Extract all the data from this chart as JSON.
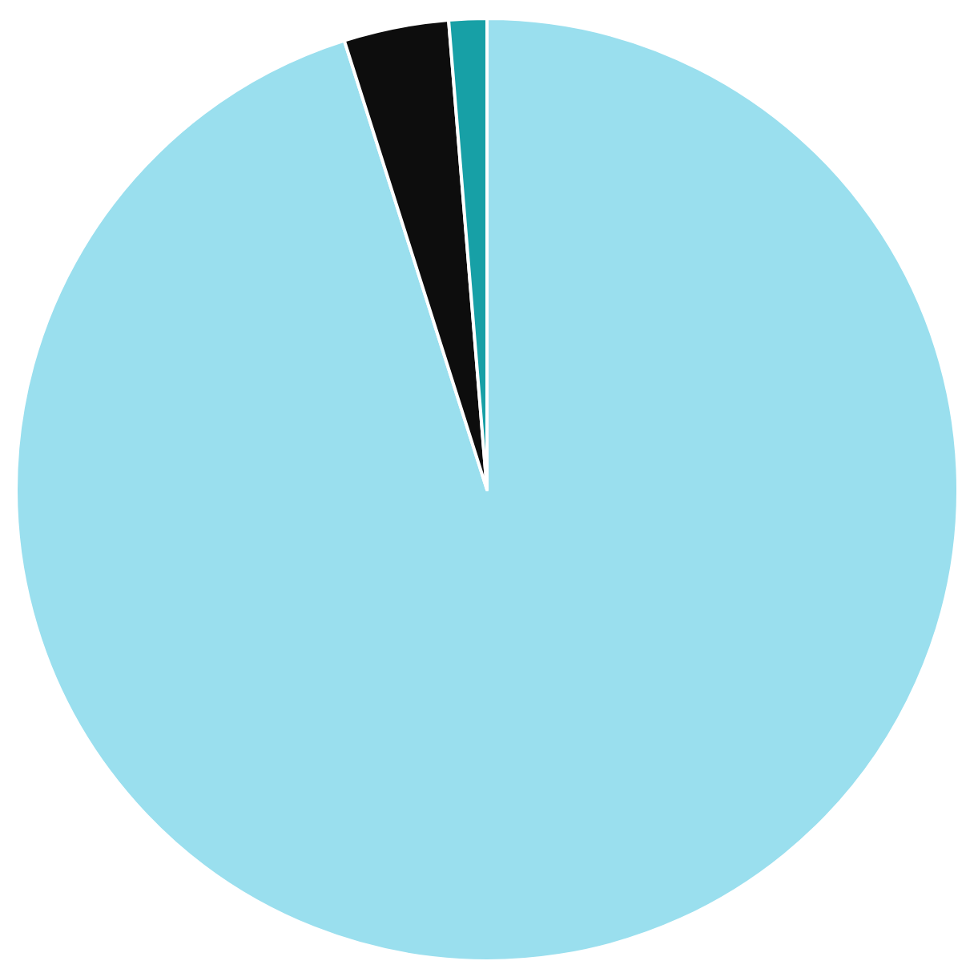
{
  "chart_data": {
    "type": "pie",
    "categories": [
      null,
      null,
      null
    ],
    "values": [
      95.1,
      3.6,
      1.3
    ],
    "colors": [
      "#9adfee",
      "#0d0d0d",
      "#17a0a6"
    ],
    "legend": false
  }
}
